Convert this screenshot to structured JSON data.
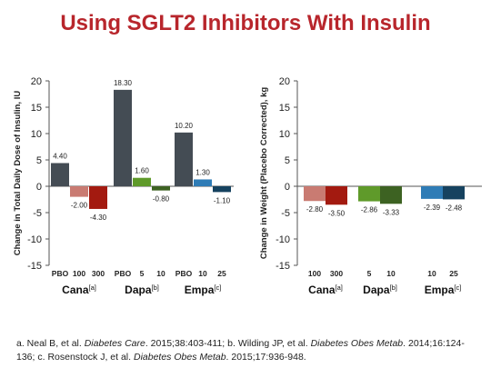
{
  "title": "Using SGLT2 Inhibitors With Insulin",
  "colors": {
    "title": "#b8262c",
    "placebo": "#444c54",
    "cana_low": "#c97b72",
    "cana_high": "#a31a10",
    "dapa_low": "#5f9a2a",
    "dapa_high": "#3d6222",
    "empa_low": "#2f7cb6",
    "empa_high": "#16425f"
  },
  "references": {
    "a_pre": "a. Neal B, et al. ",
    "a_journal": "Diabetes Care",
    "a_post": ". 2015;38:403-411; b. Wilding JP, et al. ",
    "b_journal": "Diabetes Obes Metab",
    "b_post": ". 2014;16:124-136; c. Rosenstock J, et al. ",
    "c_journal": "Diabetes Obes Metab",
    "c_post": ". 2015;17:936-948."
  },
  "chart_data": [
    {
      "type": "bar",
      "ylabel": "Change in Total Daily Dose of Insulin, IU",
      "ylim": [
        -15,
        20
      ],
      "yticks": [
        -15,
        -10,
        -5,
        0,
        5,
        10,
        15,
        20
      ],
      "grid": false,
      "groups": [
        {
          "name": "Cana",
          "sup": "[a]",
          "bars": [
            {
              "category": "PBO",
              "value": 4.4,
              "label": "4.40",
              "color": "#444c54"
            },
            {
              "category": "100",
              "value": -2.0,
              "label": "-2.00",
              "color": "#c97b72"
            },
            {
              "category": "300",
              "value": -4.3,
              "label": "-4.30",
              "color": "#a31a10"
            }
          ]
        },
        {
          "name": "Dapa",
          "sup": "[b]",
          "bars": [
            {
              "category": "PBO",
              "value": 18.3,
              "label": "18.30",
              "color": "#444c54"
            },
            {
              "category": "5",
              "value": 1.6,
              "label": "1.60",
              "color": "#5f9a2a"
            },
            {
              "category": "10",
              "value": -0.8,
              "label": "-0.80",
              "color": "#3d6222"
            }
          ]
        },
        {
          "name": "Empa",
          "sup": "[c]",
          "bars": [
            {
              "category": "PBO",
              "value": 10.2,
              "label": "10.20",
              "color": "#444c54"
            },
            {
              "category": "10",
              "value": 1.3,
              "label": "1.30",
              "color": "#2f7cb6"
            },
            {
              "category": "25",
              "value": -1.1,
              "label": "-1.10",
              "color": "#16425f"
            }
          ]
        }
      ]
    },
    {
      "type": "bar",
      "ylabel": "Change in Weight (Placebo Corrected), kg",
      "ylim": [
        -15,
        20
      ],
      "yticks": [
        -15,
        -10,
        -5,
        0,
        5,
        10,
        15,
        20
      ],
      "grid": false,
      "groups": [
        {
          "name": "Cana",
          "sup": "[a]",
          "bars": [
            {
              "category": "100",
              "value": -2.8,
              "label": "-2.80",
              "color": "#c97b72"
            },
            {
              "category": "300",
              "value": -3.5,
              "label": "-3.50",
              "color": "#a31a10"
            }
          ]
        },
        {
          "name": "Dapa",
          "sup": "[b]",
          "bars": [
            {
              "category": "5",
              "value": -2.86,
              "label": "-2.86",
              "color": "#5f9a2a"
            },
            {
              "category": "10",
              "value": -3.33,
              "label": "-3.33",
              "color": "#3d6222"
            }
          ]
        },
        {
          "name": "Empa",
          "sup": "[c]",
          "bars": [
            {
              "category": "10",
              "value": -2.39,
              "label": "-2.39",
              "color": "#2f7cb6"
            },
            {
              "category": "25",
              "value": -2.48,
              "label": "-2.48",
              "color": "#16425f"
            }
          ]
        }
      ]
    }
  ]
}
